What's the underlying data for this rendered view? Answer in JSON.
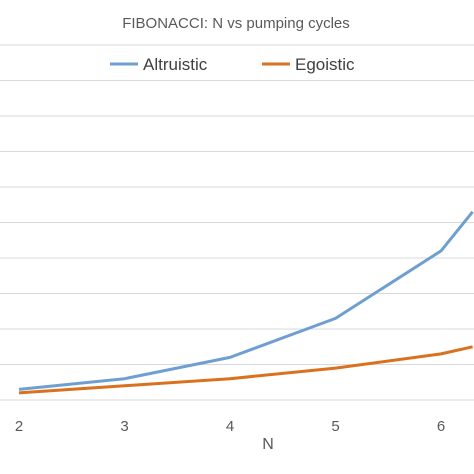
{
  "chart_data": {
    "type": "line",
    "title": "FIBONACCI: N vs pumping cycles",
    "xlabel": "N",
    "ylabel": "",
    "categories": [
      "2",
      "3",
      "4",
      "5",
      "6"
    ],
    "x": [
      2,
      3,
      4,
      5,
      6,
      6.3
    ],
    "ylim": [
      0,
      10
    ],
    "grid": true,
    "legend_position": "top",
    "series": [
      {
        "name": "Altruistic",
        "color": "#6f9fd0",
        "values": [
          0.3,
          0.6,
          1.2,
          2.3,
          4.2,
          5.3
        ]
      },
      {
        "name": "Egoistic",
        "color": "#d9711f",
        "values": [
          0.2,
          0.4,
          0.6,
          0.9,
          1.3,
          1.5
        ]
      }
    ]
  }
}
